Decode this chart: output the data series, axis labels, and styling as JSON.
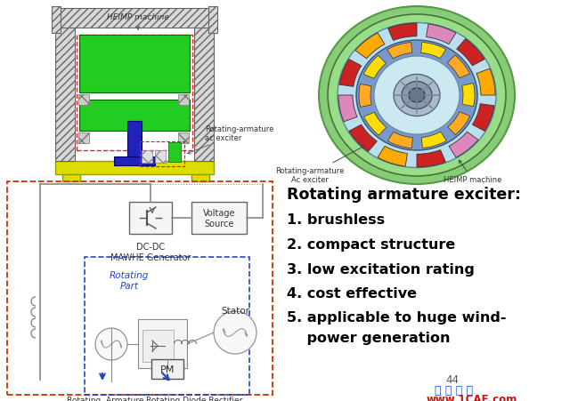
{
  "bg_color": "#ffffff",
  "page_number": "44",
  "watermark_text": "仿 真 在 线",
  "watermark_url": "www.1CAE.com",
  "watermark_color": "#1155cc",
  "watermark_url_color": "#cc1111",
  "title_text": "Rotating armature exciter:",
  "title_fontsize": 12.5,
  "item_fontsize": 11.5,
  "items": [
    "1. brushless",
    "2. compact structure",
    "3. low excitation rating",
    "4. cost effective",
    "5. applicable to huge wind-",
    "    power generation"
  ]
}
